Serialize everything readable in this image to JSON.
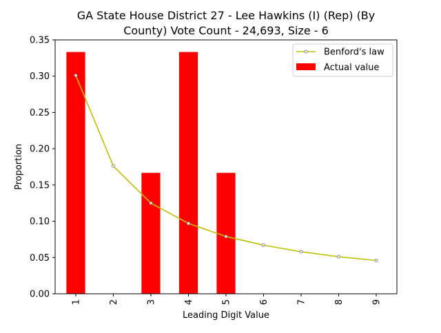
{
  "chart_data": {
    "type": "bar",
    "title_lines": [
      "GA State House District 27 - Lee Hawkins (I) (Rep) (By",
      "County) Vote Count - 24,693, Size - 6"
    ],
    "xlabel": "Leading Digit Value",
    "ylabel": "Proportion",
    "categories": [
      "1",
      "2",
      "3",
      "4",
      "5",
      "6",
      "7",
      "8",
      "9"
    ],
    "ylim": [
      0,
      0.35
    ],
    "yticks": [
      "0.00",
      "0.05",
      "0.10",
      "0.15",
      "0.20",
      "0.25",
      "0.30",
      "0.35"
    ],
    "grid": false,
    "legend_position": "top-right",
    "series": [
      {
        "name": "Actual value",
        "kind": "bar",
        "color": "#ff0000",
        "values": [
          0.3333,
          0,
          0.1667,
          0.3333,
          0.1667,
          0,
          0,
          0,
          0
        ]
      },
      {
        "name": "Benford's law",
        "kind": "line",
        "color": "#bfbf00",
        "marker_edge": "#888888",
        "values": [
          0.301,
          0.176,
          0.125,
          0.097,
          0.079,
          0.067,
          0.058,
          0.051,
          0.046
        ]
      }
    ]
  }
}
